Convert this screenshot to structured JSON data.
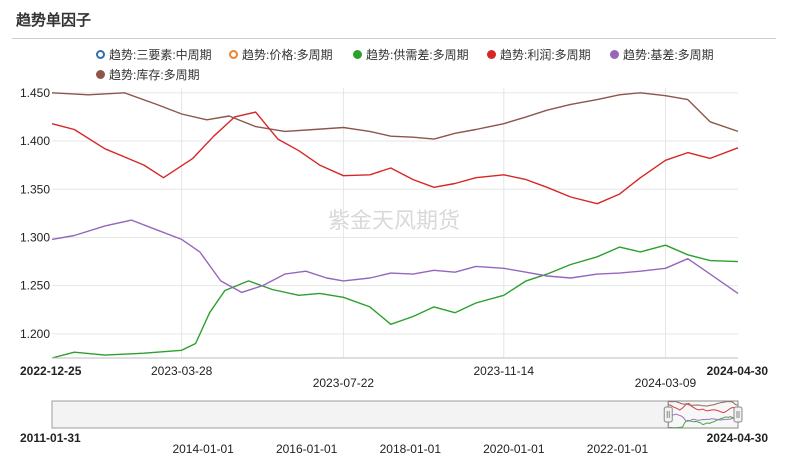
{
  "title": "趋势单因子",
  "watermark": "紫金天风期货",
  "chart_data": {
    "type": "line",
    "title": "趋势单因子",
    "ylim": [
      1.175,
      1.455
    ],
    "yticks": [
      "1.450",
      "1.400",
      "1.350",
      "1.300",
      "1.250",
      "1.200"
    ],
    "ytick_values": [
      1.45,
      1.4,
      1.35,
      1.3,
      1.25,
      1.2
    ],
    "grid": true,
    "legend_position": "top",
    "xlim": [
      "2022-12-25",
      "2024-04-30"
    ],
    "x_labels_row1": [
      {
        "date": "2022-12-25",
        "text": "2022-12-25",
        "bold": true
      },
      {
        "date": "2023-03-28",
        "text": "2023-03-28",
        "bold": false
      },
      {
        "date": "2023-11-14",
        "text": "2023-11-14",
        "bold": false
      },
      {
        "date": "2024-04-30",
        "text": "2024-04-30",
        "bold": true
      }
    ],
    "x_labels_row2": [
      {
        "date": "2023-07-22",
        "text": "2023-07-22"
      },
      {
        "date": "2024-03-09",
        "text": "2024-03-09"
      }
    ],
    "vgrid_dates": [
      "2023-03-28",
      "2023-07-22",
      "2023-11-14",
      "2024-03-09"
    ],
    "series": [
      {
        "name": "趋势:三要素:中周期",
        "color": "#2e6fb0",
        "hollow": true,
        "points": []
      },
      {
        "name": "趋势:价格:多周期",
        "color": "#f0842c",
        "hollow": true,
        "points": []
      },
      {
        "name": "趋势:供需差:多周期",
        "color": "#2ca02c",
        "hollow": false,
        "points": [
          [
            "2022-12-25",
            1.175
          ],
          [
            "2023-01-10",
            1.181
          ],
          [
            "2023-02-01",
            1.178
          ],
          [
            "2023-03-01",
            1.18
          ],
          [
            "2023-03-28",
            1.183
          ],
          [
            "2023-04-07",
            1.19
          ],
          [
            "2023-04-17",
            1.222
          ],
          [
            "2023-04-28",
            1.245
          ],
          [
            "2023-05-15",
            1.255
          ],
          [
            "2023-06-01",
            1.246
          ],
          [
            "2023-06-20",
            1.24
          ],
          [
            "2023-07-05",
            1.242
          ],
          [
            "2023-07-22",
            1.238
          ],
          [
            "2023-08-10",
            1.228
          ],
          [
            "2023-08-25",
            1.21
          ],
          [
            "2023-09-10",
            1.218
          ],
          [
            "2023-09-25",
            1.228
          ],
          [
            "2023-10-10",
            1.222
          ],
          [
            "2023-10-25",
            1.232
          ],
          [
            "2023-11-14",
            1.24
          ],
          [
            "2023-11-30",
            1.255
          ],
          [
            "2023-12-15",
            1.262
          ],
          [
            "2024-01-01",
            1.272
          ],
          [
            "2024-01-20",
            1.28
          ],
          [
            "2024-02-05",
            1.29
          ],
          [
            "2024-02-20",
            1.285
          ],
          [
            "2024-03-09",
            1.292
          ],
          [
            "2024-03-25",
            1.282
          ],
          [
            "2024-04-10",
            1.276
          ],
          [
            "2024-04-30",
            1.275
          ]
        ]
      },
      {
        "name": "趋势:利润:多周期",
        "color": "#d62728",
        "hollow": false,
        "points": [
          [
            "2022-12-25",
            1.418
          ],
          [
            "2023-01-10",
            1.412
          ],
          [
            "2023-02-01",
            1.392
          ],
          [
            "2023-03-01",
            1.375
          ],
          [
            "2023-03-15",
            1.362
          ],
          [
            "2023-04-05",
            1.382
          ],
          [
            "2023-04-20",
            1.405
          ],
          [
            "2023-05-05",
            1.425
          ],
          [
            "2023-05-20",
            1.43
          ],
          [
            "2023-06-05",
            1.402
          ],
          [
            "2023-06-20",
            1.39
          ],
          [
            "2023-07-05",
            1.375
          ],
          [
            "2023-07-22",
            1.364
          ],
          [
            "2023-08-10",
            1.365
          ],
          [
            "2023-08-25",
            1.372
          ],
          [
            "2023-09-10",
            1.36
          ],
          [
            "2023-09-25",
            1.352
          ],
          [
            "2023-10-10",
            1.356
          ],
          [
            "2023-10-25",
            1.362
          ],
          [
            "2023-11-14",
            1.365
          ],
          [
            "2023-11-30",
            1.36
          ],
          [
            "2023-12-15",
            1.352
          ],
          [
            "2024-01-01",
            1.342
          ],
          [
            "2024-01-20",
            1.335
          ],
          [
            "2024-02-05",
            1.345
          ],
          [
            "2024-02-20",
            1.362
          ],
          [
            "2024-03-09",
            1.38
          ],
          [
            "2024-03-25",
            1.388
          ],
          [
            "2024-04-10",
            1.382
          ],
          [
            "2024-04-30",
            1.393
          ]
        ]
      },
      {
        "name": "趋势:基差:多周期",
        "color": "#9467bd",
        "hollow": false,
        "points": [
          [
            "2022-12-25",
            1.298
          ],
          [
            "2023-01-10",
            1.302
          ],
          [
            "2023-02-01",
            1.312
          ],
          [
            "2023-02-20",
            1.318
          ],
          [
            "2023-03-10",
            1.308
          ],
          [
            "2023-03-28",
            1.298
          ],
          [
            "2023-04-10",
            1.285
          ],
          [
            "2023-04-25",
            1.255
          ],
          [
            "2023-05-10",
            1.243
          ],
          [
            "2023-05-25",
            1.25
          ],
          [
            "2023-06-10",
            1.262
          ],
          [
            "2023-06-25",
            1.265
          ],
          [
            "2023-07-10",
            1.258
          ],
          [
            "2023-07-22",
            1.255
          ],
          [
            "2023-08-10",
            1.258
          ],
          [
            "2023-08-25",
            1.263
          ],
          [
            "2023-09-10",
            1.262
          ],
          [
            "2023-09-25",
            1.266
          ],
          [
            "2023-10-10",
            1.264
          ],
          [
            "2023-10-25",
            1.27
          ],
          [
            "2023-11-14",
            1.268
          ],
          [
            "2023-11-30",
            1.264
          ],
          [
            "2023-12-15",
            1.26
          ],
          [
            "2024-01-01",
            1.258
          ],
          [
            "2024-01-20",
            1.262
          ],
          [
            "2024-02-05",
            1.263
          ],
          [
            "2024-02-20",
            1.265
          ],
          [
            "2024-03-09",
            1.268
          ],
          [
            "2024-03-25",
            1.278
          ],
          [
            "2024-04-10",
            1.262
          ],
          [
            "2024-04-30",
            1.242
          ]
        ]
      },
      {
        "name": "趋势:库存:多周期",
        "color": "#8c564b",
        "hollow": false,
        "points": [
          [
            "2022-12-25",
            1.45
          ],
          [
            "2023-01-20",
            1.448
          ],
          [
            "2023-02-15",
            1.45
          ],
          [
            "2023-03-10",
            1.438
          ],
          [
            "2023-03-28",
            1.428
          ],
          [
            "2023-04-15",
            1.422
          ],
          [
            "2023-05-01",
            1.426
          ],
          [
            "2023-05-20",
            1.415
          ],
          [
            "2023-06-10",
            1.41
          ],
          [
            "2023-07-01",
            1.412
          ],
          [
            "2023-07-22",
            1.414
          ],
          [
            "2023-08-10",
            1.41
          ],
          [
            "2023-08-25",
            1.405
          ],
          [
            "2023-09-10",
            1.404
          ],
          [
            "2023-09-25",
            1.402
          ],
          [
            "2023-10-10",
            1.408
          ],
          [
            "2023-10-25",
            1.412
          ],
          [
            "2023-11-14",
            1.418
          ],
          [
            "2023-11-30",
            1.425
          ],
          [
            "2023-12-15",
            1.432
          ],
          [
            "2024-01-01",
            1.438
          ],
          [
            "2024-01-20",
            1.443
          ],
          [
            "2024-02-05",
            1.448
          ],
          [
            "2024-02-20",
            1.45
          ],
          [
            "2024-03-09",
            1.447
          ],
          [
            "2024-03-25",
            1.443
          ],
          [
            "2024-04-10",
            1.42
          ],
          [
            "2024-04-30",
            1.41
          ]
        ]
      }
    ],
    "navigator": {
      "xlim": [
        "2011-01-31",
        "2024-04-30"
      ],
      "selected_range": [
        "2022-12-25",
        "2024-04-30"
      ],
      "labels_row1": [
        {
          "date": "2011-01-31",
          "text": "2011-01-31",
          "bold": true
        },
        {
          "date": "2024-04-30",
          "text": "2024-04-30",
          "bold": true
        }
      ],
      "labels_row2": [
        {
          "date": "2014-01-01",
          "text": "2014-01-01"
        },
        {
          "date": "2016-01-01",
          "text": "2016-01-01"
        },
        {
          "date": "2018-01-01",
          "text": "2018-01-01"
        },
        {
          "date": "2020-01-01",
          "text": "2020-01-01"
        },
        {
          "date": "2022-01-01",
          "text": "2022-01-01"
        }
      ]
    }
  }
}
